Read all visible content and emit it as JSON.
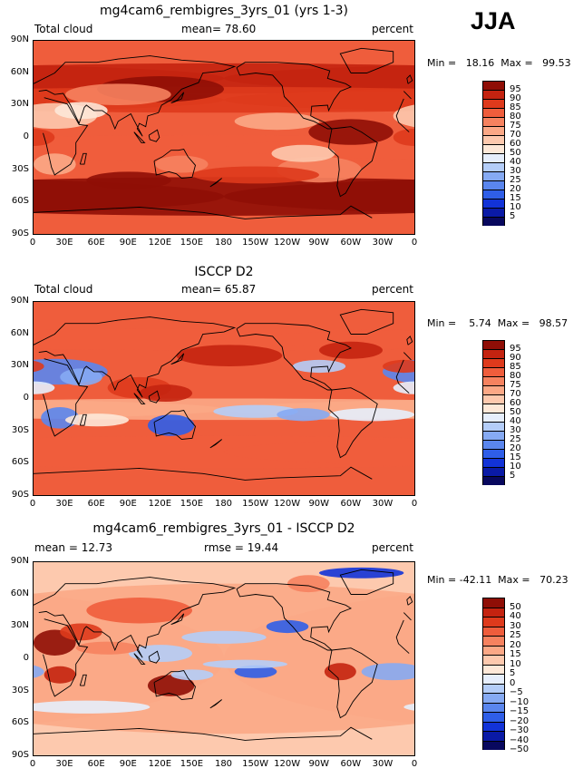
{
  "season": "JJA",
  "x_ticks": [
    "0",
    "30E",
    "60E",
    "90E",
    "120E",
    "150E",
    "180",
    "150W",
    "120W",
    "90W",
    "60W",
    "30W",
    "0"
  ],
  "y_ticks": [
    "90N",
    "60N",
    "30N",
    "0",
    "30S",
    "60S",
    "90S"
  ],
  "colors": {
    "abs": [
      "#08085e",
      "#0a1aa6",
      "#1233d8",
      "#2f5ee8",
      "#5a86ee",
      "#86aaf3",
      "#b4cdf8",
      "#e6eefc",
      "#fde8d8",
      "#fdc9ae",
      "#fba886",
      "#f6825f",
      "#ef5d3c",
      "#de3a1c",
      "#c42310",
      "#8f0e06"
    ],
    "diff": [
      "#08085e",
      "#0a1aa6",
      "#1233d8",
      "#2f5ee8",
      "#5a86ee",
      "#86aaf3",
      "#b4cdf8",
      "#e6eefc",
      "#fde8d8",
      "#fdc9ae",
      "#fba886",
      "#f6825f",
      "#ef5d3c",
      "#de3a1c",
      "#c42310",
      "#8f0e06"
    ]
  },
  "panels": [
    {
      "title": "mg4cam6_rembigres_3yrs_01 (yrs 1-3)",
      "left_text": "Total cloud",
      "center_text": "mean=  78.60",
      "right_text": "percent",
      "minmax": "Min =   18.16  Max =   99.53",
      "levels": [
        "95",
        "90",
        "85",
        "80",
        "75",
        "70",
        "60",
        "50",
        "40",
        "30",
        "25",
        "20",
        "15",
        "10",
        "5"
      ]
    },
    {
      "title": "ISCCP D2",
      "left_text": "Total cloud",
      "center_text": "mean=  65.87",
      "right_text": "percent",
      "minmax": "Min =    5.74  Max =   98.57",
      "levels": [
        "95",
        "90",
        "85",
        "80",
        "75",
        "70",
        "60",
        "50",
        "40",
        "30",
        "25",
        "20",
        "15",
        "10",
        "5"
      ]
    },
    {
      "title": "mg4cam6_rembigres_3yrs_01 - ISCCP D2",
      "left_text": "mean =   12.73",
      "center_text": "rmse =   19.44",
      "right_text": "percent",
      "minmax": "Min = -42.11  Max =   70.23",
      "levels": [
        "50",
        "40",
        "30",
        "25",
        "20",
        "15",
        "10",
        "5",
        "0",
        "−5",
        "−10",
        "−15",
        "−20",
        "−30",
        "−40",
        "−50"
      ]
    }
  ]
}
